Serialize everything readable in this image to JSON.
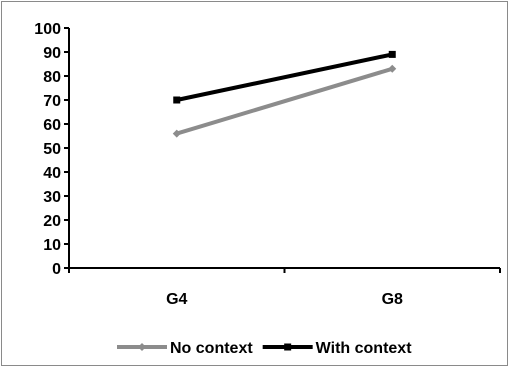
{
  "chart_data": {
    "type": "line",
    "categories": [
      "G4",
      "G8"
    ],
    "series": [
      {
        "name": "No context",
        "values": [
          56,
          83
        ],
        "color": "#8c8c8c",
        "marker": "diamond"
      },
      {
        "name": "With context",
        "values": [
          70,
          89
        ],
        "color": "#000000",
        "marker": "square"
      }
    ],
    "title": "",
    "xlabel": "",
    "ylabel": "",
    "ylim": [
      0,
      100
    ],
    "yticks": [
      0,
      10,
      20,
      30,
      40,
      50,
      60,
      70,
      80,
      90,
      100
    ],
    "grid": false,
    "legend_position": "bottom"
  }
}
